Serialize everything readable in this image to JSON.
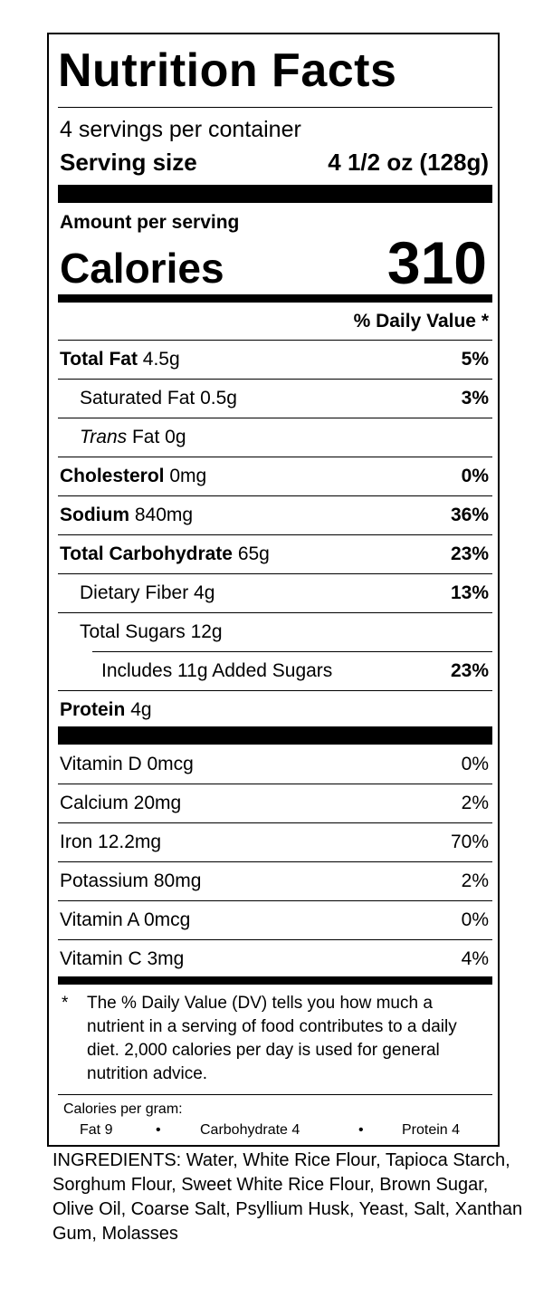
{
  "title": "Nutrition Facts",
  "servings_per_container": "4 servings per container",
  "serving_size_label": "Serving size",
  "serving_size_value": "4 1/2 oz (128g)",
  "amount_per_serving": "Amount per serving",
  "calories_label": "Calories",
  "calories_value": "310",
  "daily_value_header": "% Daily Value *",
  "nutrients": [
    {
      "name": "Total Fat",
      "amount": "4.5g",
      "dv": "5%"
    },
    {
      "name": "Saturated Fat",
      "amount": "0.5g",
      "dv": "3%"
    },
    {
      "name": "Trans",
      "amount": "Fat 0g",
      "dv": ""
    },
    {
      "name": "Cholesterol",
      "amount": "0mg",
      "dv": "0%"
    },
    {
      "name": "Sodium",
      "amount": "840mg",
      "dv": "36%"
    },
    {
      "name": "Total Carbohydrate",
      "amount": "65g",
      "dv": "23%"
    },
    {
      "name": "Dietary Fiber",
      "amount": "4g",
      "dv": "13%"
    },
    {
      "name": "Total Sugars",
      "amount": "12g",
      "dv": ""
    },
    {
      "name": "Includes 11g Added Sugars",
      "amount": "",
      "dv": "23%"
    },
    {
      "name": "Protein",
      "amount": "4g",
      "dv": ""
    }
  ],
  "vitamins": [
    {
      "name": "Vitamin D 0mcg",
      "dv": "0%"
    },
    {
      "name": "Calcium 20mg",
      "dv": "2%"
    },
    {
      "name": "Iron 12.2mg",
      "dv": "70%"
    },
    {
      "name": "Potassium 80mg",
      "dv": "2%"
    },
    {
      "name": "Vitamin A 0mcg",
      "dv": "0%"
    },
    {
      "name": "Vitamin C 3mg",
      "dv": "4%"
    }
  ],
  "footnote_star": "*",
  "footnote_text": "The % Daily Value (DV) tells you how much a nutrient in a serving of food contributes to a daily diet. 2,000 calories per day is used for general nutrition advice.",
  "calories_per_gram_label": "Calories per gram:",
  "calories_per_gram": {
    "fat": "Fat 9",
    "bullet": "•",
    "carbohydrate": "Carbohydrate 4",
    "protein": "Protein 4"
  },
  "ingredients": "INGREDIENTS: Water, White Rice Flour, Tapioca Starch, Sorghum Flour, Sweet White Rice Flour, Brown Sugar, Olive Oil, Coarse Salt, Psyllium Husk, Yeast, Salt, Xanthan Gum, Molasses"
}
